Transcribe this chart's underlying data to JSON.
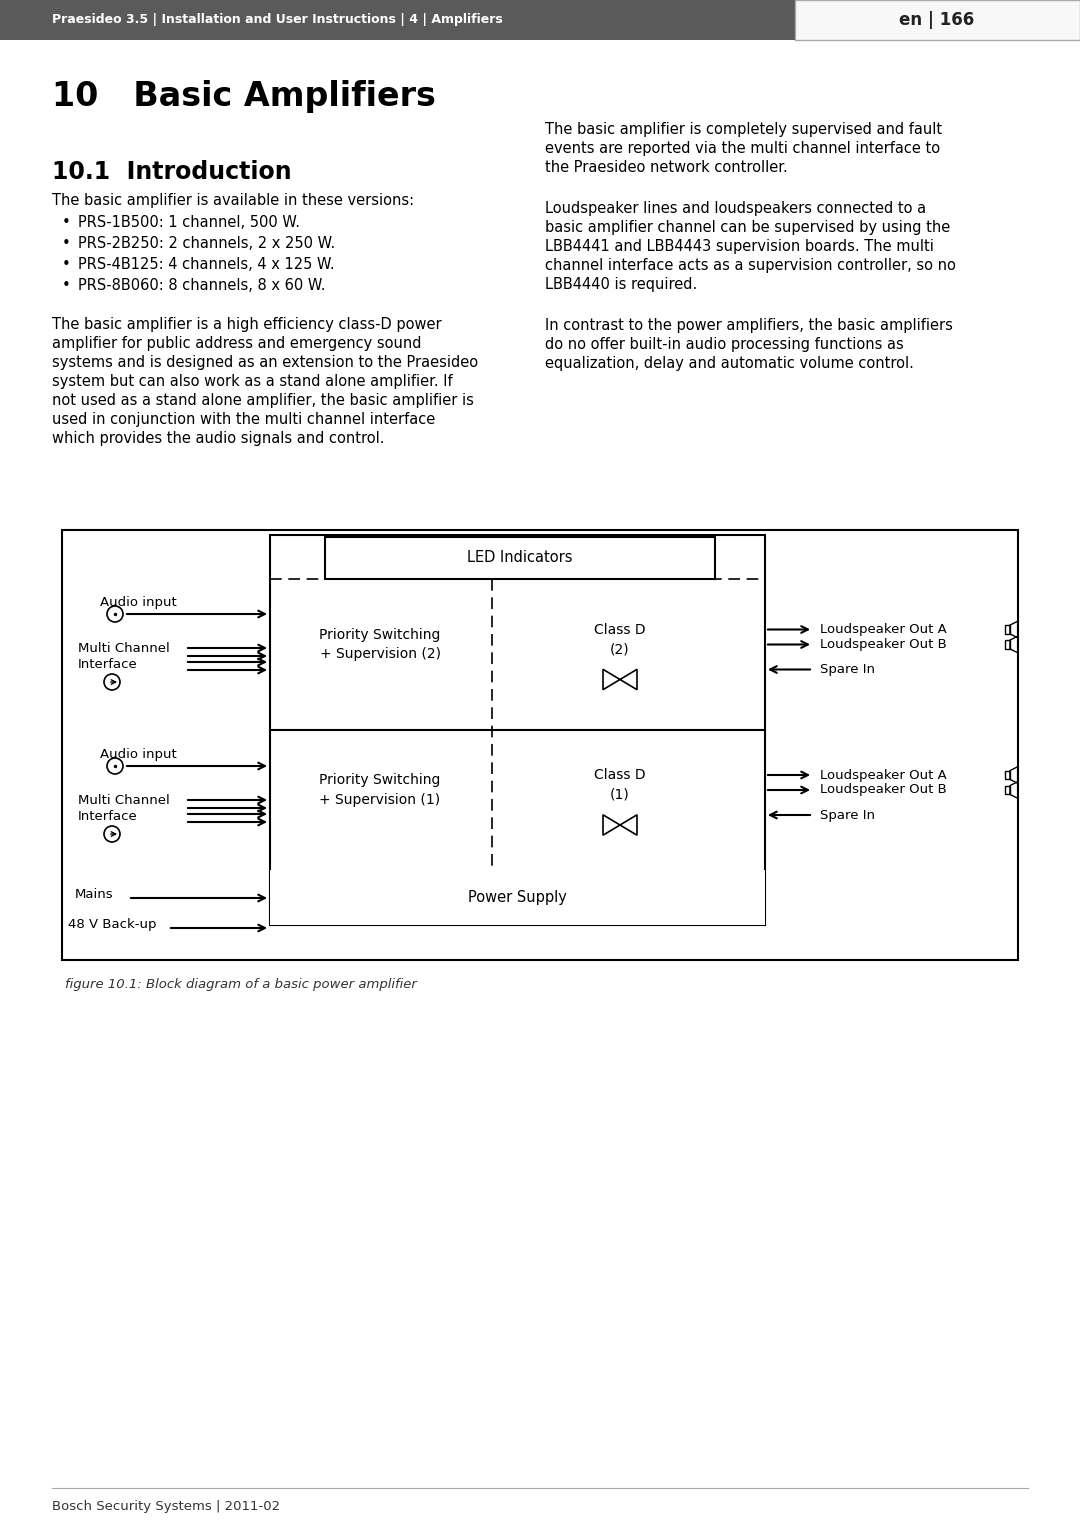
{
  "page_width": 10.8,
  "page_height": 15.28,
  "bg_color": "#ffffff",
  "header_bg": "#666666",
  "header_text": "Praesideo 3.5 | Installation and User Instructions | 4 | Amplifiers",
  "header_page": "en | 166",
  "section_title": "10   Basic Amplifiers",
  "subsection_title": "10.1  Introduction",
  "col1_intro": "The basic amplifier is available in these versions:",
  "bullets": [
    "PRS-1B500: 1 channel, 500 W.",
    "PRS-2B250: 2 channels, 2 x 250 W.",
    "PRS-4B125: 4 channels, 4 x 125 W.",
    "PRS-8B060: 8 channels, 8 x 60 W."
  ],
  "col1_para2_lines": [
    "The basic amplifier is a high efficiency class-D power",
    "amplifier for public address and emergency sound",
    "systems and is designed as an extension to the Praesideo",
    "system but can also work as a stand alone amplifier. If",
    "not used as a stand alone amplifier, the basic amplifier is",
    "used in conjunction with the multi channel interface",
    "which provides the audio signals and control."
  ],
  "col2_para1_lines": [
    "The basic amplifier is completely supervised and fault",
    "events are reported via the multi channel interface to",
    "the Praesideo network controller."
  ],
  "col2_para2_lines": [
    "Loudspeaker lines and loudspeakers connected to a",
    "basic amplifier channel can be supervised by using the",
    "LBB4441 and LBB4443 supervision boards. The multi",
    "channel interface acts as a supervision controller, so no",
    "LBB4440 is required."
  ],
  "col2_para3_lines": [
    "In contrast to the power amplifiers, the basic amplifiers",
    "do no offer built-in audio processing functions as",
    "equalization, delay and automatic volume control."
  ],
  "figure_caption": "figure 10.1: Block diagram of a basic power amplifier",
  "footer_text": "Bosch Security Systems | 2011-02",
  "led_label": "LED Indicators",
  "ps_label": "Power Supply",
  "ch2_ps_label": "Priority Switching\n+ Supervision (2)",
  "ch1_ps_label": "Priority Switching\n+ Supervision (1)",
  "ch2_class_label": "Class D\n(2)",
  "ch1_class_label": "Class D\n(1)",
  "audio_input_label": "Audio input",
  "multichannel_label1": "Multi Channel",
  "multichannel_label2": "Interface",
  "mains_label": "Mains",
  "backup_label": "48 V Back-up",
  "lsp_out_a": "Loudspeaker Out A",
  "lsp_out_b": "Loudspeaker Out B",
  "spare_in": "Spare In"
}
